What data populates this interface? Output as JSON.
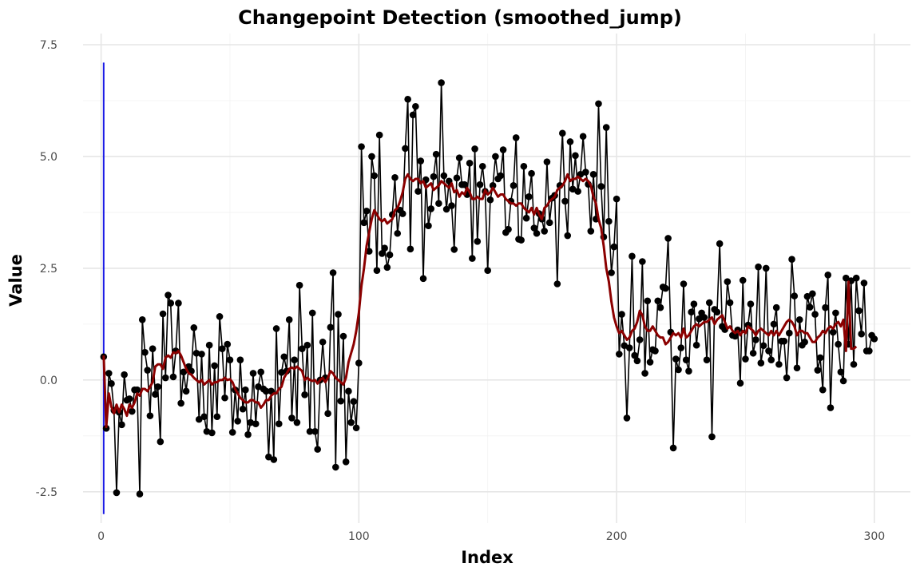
{
  "chart_data": {
    "type": "line",
    "title": "Changepoint Detection (smoothed_jump)",
    "xlabel": "Index",
    "ylabel": "Value",
    "xlim": [
      -7,
      314
    ],
    "ylim": [
      -3.2,
      7.75
    ],
    "x_ticks": [
      0,
      100,
      200,
      300
    ],
    "x_tick_labels": [
      "0",
      "100",
      "200",
      "300"
    ],
    "y_ticks": [
      -2.5,
      0,
      2.5,
      5,
      7.5
    ],
    "y_tick_labels": [
      "-2.5",
      "0.0",
      "2.5",
      "5.0",
      "7.5"
    ],
    "grid": true,
    "legend": "none",
    "changepoints": [
      {
        "x": 1,
        "y_from": -3.0,
        "y_to": 7.1,
        "color": "#1a1ae6"
      }
    ],
    "series": [
      {
        "kind": "observed",
        "color": "#000000",
        "x_start": 1,
        "values": [
          0.52,
          -1.08,
          0.15,
          -0.08,
          -0.68,
          -2.52,
          -0.72,
          -1.0,
          0.12,
          -0.45,
          -0.42,
          -0.7,
          -0.22,
          -0.22,
          -2.55,
          1.35,
          0.62,
          0.22,
          -0.8,
          0.7,
          -0.32,
          -0.15,
          -1.38,
          1.48,
          0.05,
          1.9,
          1.72,
          0.07,
          0.65,
          1.72,
          -0.52,
          0.18,
          -0.25,
          0.3,
          0.2,
          1.17,
          0.6,
          -0.88,
          0.58,
          -0.82,
          -1.15,
          0.78,
          -1.18,
          0.32,
          -0.82,
          1.42,
          0.7,
          -0.4,
          0.8,
          0.45,
          -1.17,
          -0.22,
          -0.92,
          0.45,
          -0.65,
          -0.22,
          -1.22,
          -0.95,
          0.15,
          -0.98,
          -0.15,
          0.18,
          -0.2,
          -0.25,
          -1.72,
          -0.25,
          -1.78,
          1.15,
          -0.98,
          0.17,
          0.52,
          0.2,
          1.35,
          -0.85,
          0.45,
          -0.95,
          2.12,
          0.7,
          -0.33,
          0.78,
          -1.15,
          1.5,
          -1.15,
          -1.55,
          0.0,
          0.85,
          0.05,
          -0.75,
          1.18,
          2.4,
          -1.95,
          1.47,
          -0.47,
          0.98,
          -1.83,
          -0.25,
          -0.95,
          -0.48,
          -1.07,
          0.38,
          5.22,
          3.52,
          3.78,
          2.88,
          5.0,
          4.57,
          2.45,
          5.48,
          2.83,
          2.95,
          2.52,
          2.8,
          3.7,
          4.53,
          3.28,
          3.8,
          3.72,
          5.18,
          6.28,
          2.93,
          5.93,
          6.12,
          4.22,
          4.9,
          2.27,
          4.48,
          3.45,
          3.83,
          4.55,
          5.05,
          3.95,
          6.65,
          4.57,
          3.82,
          4.45,
          3.9,
          2.92,
          4.52,
          4.97,
          4.37,
          4.37,
          4.15,
          4.85,
          2.72,
          5.17,
          3.1,
          4.37,
          4.78,
          4.22,
          2.45,
          4.03,
          4.35,
          5.0,
          4.5,
          4.57,
          5.15,
          3.3,
          3.37,
          4.0,
          4.35,
          5.42,
          3.15,
          3.13,
          4.78,
          3.62,
          4.1,
          4.62,
          3.4,
          3.28,
          3.72,
          3.6,
          3.33,
          4.88,
          3.52,
          4.07,
          4.13,
          2.15,
          4.35,
          5.52,
          4.0,
          3.23,
          5.33,
          4.27,
          5.02,
          4.22,
          4.6,
          5.45,
          4.65,
          4.38,
          3.33,
          4.6,
          3.6,
          6.18,
          4.33,
          3.2,
          5.65,
          3.55,
          2.4,
          2.98,
          4.05,
          0.58,
          1.47,
          0.77,
          -0.85,
          0.72,
          2.77,
          0.55,
          0.43,
          0.9,
          2.65,
          0.15,
          1.77,
          0.4,
          0.68,
          0.65,
          1.77,
          1.62,
          2.08,
          2.05,
          3.17,
          1.07,
          -1.52,
          0.47,
          0.23,
          0.72,
          2.15,
          0.45,
          0.2,
          1.52,
          1.7,
          0.78,
          1.37,
          1.5,
          1.4,
          0.45,
          1.73,
          -1.27,
          1.58,
          1.52,
          3.05,
          1.2,
          1.13,
          2.2,
          1.73,
          1.0,
          0.98,
          1.12,
          -0.07,
          2.23,
          0.47,
          1.23,
          1.7,
          0.6,
          0.9,
          2.53,
          0.38,
          0.77,
          2.5,
          0.65,
          0.45,
          1.25,
          1.62,
          0.35,
          0.87,
          0.87,
          0.05,
          1.05,
          2.7,
          1.88,
          0.27,
          1.35,
          0.78,
          0.85,
          1.87,
          1.63,
          1.93,
          1.47,
          0.22,
          0.5,
          -0.22,
          1.62,
          2.35,
          -0.62,
          1.07,
          1.5,
          0.8,
          0.18,
          -0.02,
          2.28,
          0.8,
          2.22,
          0.35,
          2.28,
          1.55,
          1.03,
          2.17,
          0.65,
          0.65,
          1.0,
          0.92
        ]
      },
      {
        "kind": "smoothed",
        "color": "#8b0000",
        "x_start": 1,
        "values": [
          0.55,
          -1.05,
          -0.3,
          -0.6,
          -0.75,
          -0.55,
          -0.72,
          -0.55,
          -0.65,
          -0.8,
          -0.55,
          -0.62,
          -0.5,
          -0.3,
          -0.35,
          -0.2,
          -0.2,
          -0.25,
          -0.15,
          -0.05,
          0.3,
          0.35,
          0.35,
          0.25,
          0.5,
          0.55,
          0.5,
          0.62,
          0.6,
          0.65,
          0.55,
          0.4,
          0.25,
          0.15,
          0.12,
          0.05,
          0.0,
          -0.05,
          0.0,
          -0.1,
          -0.05,
          0.0,
          -0.1,
          -0.05,
          -0.05,
          0.0,
          0.0,
          0.05,
          0.0,
          0.02,
          -0.05,
          -0.2,
          -0.3,
          -0.4,
          -0.45,
          -0.5,
          -0.5,
          -0.45,
          -0.45,
          -0.5,
          -0.5,
          -0.62,
          -0.55,
          -0.45,
          -0.45,
          -0.35,
          -0.3,
          -0.3,
          -0.2,
          -0.15,
          0.05,
          0.15,
          0.25,
          0.28,
          0.25,
          0.3,
          0.25,
          0.2,
          0.0,
          0.05,
          0.0,
          -0.02,
          0.0,
          -0.08,
          0.0,
          0.05,
          -0.05,
          0.05,
          0.2,
          0.15,
          0.05,
          0.0,
          -0.05,
          -0.1,
          0.05,
          0.4,
          0.6,
          0.8,
          1.1,
          1.5,
          2.1,
          2.5,
          3.0,
          3.3,
          3.6,
          3.8,
          3.7,
          3.6,
          3.55,
          3.6,
          3.5,
          3.55,
          3.6,
          3.8,
          3.85,
          4.0,
          4.2,
          4.5,
          4.6,
          4.5,
          4.45,
          4.5,
          4.5,
          4.4,
          4.45,
          4.3,
          4.35,
          4.4,
          4.25,
          4.3,
          4.35,
          4.45,
          4.4,
          4.35,
          4.3,
          4.4,
          4.2,
          4.25,
          4.1,
          4.2,
          4.15,
          4.3,
          4.2,
          4.05,
          4.05,
          4.1,
          4.05,
          4.05,
          4.25,
          4.15,
          4.2,
          4.3,
          4.2,
          4.1,
          4.15,
          4.15,
          4.05,
          4.0,
          3.95,
          3.95,
          3.9,
          3.95,
          3.95,
          3.85,
          3.8,
          3.75,
          3.85,
          3.7,
          3.85,
          3.7,
          3.6,
          3.85,
          3.9,
          4.0,
          4.05,
          4.1,
          4.25,
          4.3,
          4.35,
          4.45,
          4.6,
          4.45,
          4.5,
          4.5,
          4.55,
          4.5,
          4.45,
          4.5,
          4.45,
          4.35,
          4.1,
          3.95,
          3.6,
          3.4,
          3.0,
          2.5,
          2.2,
          1.75,
          1.4,
          1.2,
          1.05,
          1.1,
          1.0,
          0.9,
          0.95,
          1.1,
          1.15,
          1.3,
          1.55,
          1.45,
          1.2,
          1.1,
          1.1,
          1.2,
          1.1,
          1.0,
          0.95,
          0.95,
          0.8,
          0.85,
          0.95,
          1.05,
          1.0,
          1.05,
          0.95,
          1.15,
          0.95,
          1.0,
          1.1,
          1.2,
          1.25,
          1.2,
          1.25,
          1.3,
          1.3,
          1.35,
          1.4,
          1.25,
          1.35,
          1.4,
          1.45,
          1.3,
          1.15,
          1.2,
          1.1,
          1.05,
          1.1,
          1.0,
          1.1,
          1.05,
          1.2,
          1.15,
          1.1,
          1.0,
          1.1,
          1.15,
          1.1,
          1.05,
          1.0,
          1.1,
          1.0,
          1.1,
          1.0,
          1.1,
          1.2,
          1.3,
          1.35,
          1.3,
          1.2,
          1.0,
          1.1,
          1.1,
          1.05,
          1.05,
          0.95,
          0.85,
          0.85,
          0.95,
          1.0,
          1.1,
          1.05,
          1.15,
          1.2,
          1.15,
          1.25,
          1.3,
          1.2,
          1.35,
          0.65,
          2.2,
          0.7,
          0.7,
          0.75
        ]
      }
    ]
  }
}
